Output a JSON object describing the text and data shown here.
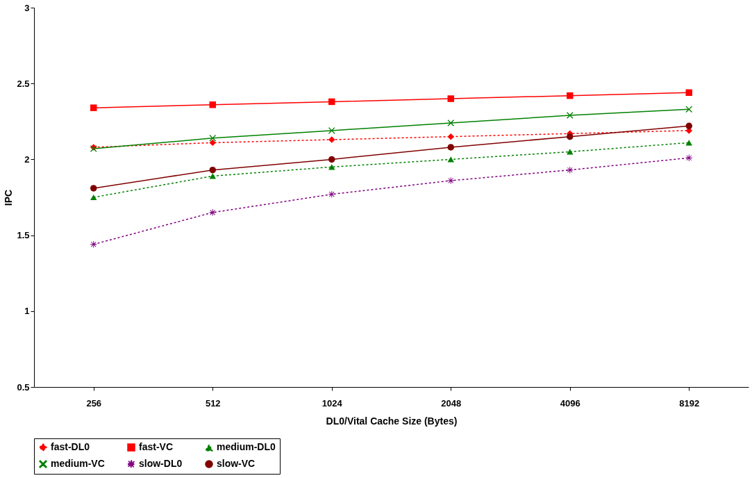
{
  "chart_data": {
    "type": "line",
    "xlabel": "DL0/Vital Cache Size (Bytes)",
    "ylabel": "IPC",
    "categories": [
      "256",
      "512",
      "1024",
      "2048",
      "4096",
      "8192"
    ],
    "ylim": [
      0.5,
      3
    ],
    "yticks": [
      0.5,
      1,
      1.5,
      2,
      2.5,
      3
    ],
    "grid": false,
    "legend": "bottom",
    "series": [
      {
        "name": "fast-DL0",
        "color": "#ff0000",
        "marker": "diamond",
        "line_style": "dotted",
        "values": [
          2.08,
          2.11,
          2.13,
          2.15,
          2.17,
          2.19
        ]
      },
      {
        "name": "fast-VC",
        "color": "#ff0000",
        "marker": "square",
        "line_style": "solid",
        "values": [
          2.34,
          2.36,
          2.38,
          2.4,
          2.42,
          2.44
        ]
      },
      {
        "name": "medium-DL0",
        "color": "#008000",
        "marker": "triangle",
        "line_style": "dotted",
        "values": [
          1.75,
          1.89,
          1.95,
          2.0,
          2.05,
          2.11
        ]
      },
      {
        "name": "medium-VC",
        "color": "#008000",
        "marker": "cross",
        "line_style": "solid",
        "values": [
          2.07,
          2.14,
          2.19,
          2.24,
          2.29,
          2.33
        ]
      },
      {
        "name": "slow-DL0",
        "color": "#800080",
        "marker": "star",
        "line_style": "dotted",
        "values": [
          1.44,
          1.65,
          1.77,
          1.86,
          1.93,
          2.01
        ]
      },
      {
        "name": "slow-VC",
        "color": "#800000",
        "marker": "circle",
        "line_style": "solid",
        "values": [
          1.81,
          1.93,
          2.0,
          2.08,
          2.15,
          2.22
        ]
      }
    ]
  }
}
